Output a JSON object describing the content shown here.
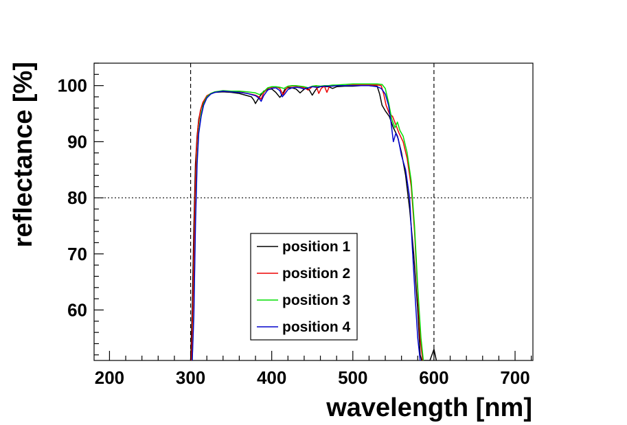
{
  "chart_data": {
    "type": "line",
    "title": "",
    "xlabel": "wavelength [nm]",
    "ylabel": "reflectance [%]",
    "xlim": [
      181,
      722
    ],
    "ylim": [
      51,
      104
    ],
    "x_ticks": [
      200,
      300,
      400,
      500,
      600,
      700
    ],
    "y_ticks": [
      60,
      70,
      80,
      90,
      100
    ],
    "x_tick_labels": [
      "200",
      "300",
      "400",
      "500",
      "600",
      "700"
    ],
    "y_tick_labels": [
      "60",
      "70",
      "80",
      "90",
      "100"
    ],
    "reference_lines": [
      {
        "orientation": "vertical",
        "value": 300,
        "style": "dashed"
      },
      {
        "orientation": "vertical",
        "value": 600,
        "style": "dashed"
      },
      {
        "orientation": "horizontal",
        "value": 80,
        "style": "dotted"
      }
    ],
    "legend_position": "bottom-center",
    "series": [
      {
        "name": "position 1",
        "color": "#000000",
        "x": [
          300,
          302,
          304,
          306,
          308,
          310,
          313,
          316,
          320,
          325,
          330,
          340,
          350,
          360,
          370,
          375,
          378,
          380,
          382,
          386,
          390,
          395,
          400,
          405,
          410,
          413,
          416,
          420,
          425,
          430,
          435,
          438,
          442,
          446,
          450,
          453,
          456,
          460,
          465,
          470,
          475,
          480,
          490,
          500,
          510,
          520,
          530,
          533,
          536,
          540,
          545,
          550,
          555,
          560,
          565,
          570,
          575,
          580,
          583,
          585,
          587,
          590,
          595,
          600,
          603
        ],
        "values": [
          51,
          60,
          75,
          86,
          91,
          94,
          96,
          97,
          98,
          98.6,
          98.8,
          98.9,
          98.8,
          98.6,
          98.2,
          98,
          97.4,
          96.8,
          97.3,
          98.2,
          99,
          99.3,
          99.4,
          98.8,
          97.9,
          98.4,
          99.3,
          99.6,
          99.6,
          99.4,
          98.7,
          99.1,
          99.6,
          99.3,
          98.3,
          99,
          99.6,
          99.8,
          99.8,
          99.8,
          99.5,
          99.8,
          99.9,
          99.9,
          100,
          100,
          99.9,
          98.5,
          96.5,
          95.5,
          94.5,
          92.5,
          91,
          88,
          84,
          78,
          70,
          60,
          52,
          51,
          51,
          51,
          51,
          53,
          51
        ]
      },
      {
        "name": "position 2",
        "color": "#ee0000",
        "x": [
          301,
          303,
          305,
          307,
          309,
          312,
          315,
          320,
          325,
          330,
          340,
          350,
          360,
          370,
          380,
          384,
          387,
          390,
          395,
          400,
          405,
          410,
          414,
          417,
          420,
          425,
          430,
          435,
          440,
          445,
          450,
          455,
          458,
          461,
          465,
          468,
          471,
          475,
          480,
          490,
          500,
          510,
          520,
          530,
          535,
          538,
          541,
          545,
          549,
          553,
          557,
          562,
          567,
          572,
          576,
          580,
          583,
          586
        ],
        "values": [
          51,
          62,
          78,
          88,
          92.5,
          95.5,
          97,
          98.2,
          98.6,
          98.9,
          99,
          98.9,
          98.9,
          98.6,
          98.3,
          98,
          97.6,
          98.7,
          99.5,
          99.7,
          99.8,
          99.5,
          98.4,
          99.2,
          99.8,
          99.9,
          99.9,
          99.8,
          99.6,
          99.2,
          99.8,
          99.9,
          98.6,
          99.5,
          99.9,
          98.8,
          99.8,
          100,
          100,
          100,
          100.1,
          100.1,
          100.1,
          100.1,
          100,
          98.5,
          96.5,
          95,
          94.5,
          93,
          91.5,
          90,
          87,
          82,
          74,
          63,
          55,
          51
        ]
      },
      {
        "name": "position 3",
        "color": "#00dd00",
        "x": [
          302,
          304,
          306,
          308,
          310,
          313,
          316,
          320,
          325,
          330,
          340,
          350,
          360,
          370,
          380,
          385,
          390,
          395,
          400,
          405,
          410,
          415,
          420,
          425,
          430,
          435,
          440,
          445,
          450,
          455,
          460,
          465,
          470,
          475,
          480,
          490,
          500,
          510,
          520,
          530,
          536,
          540,
          544,
          548,
          552,
          555,
          558,
          562,
          567,
          572,
          576,
          580,
          584,
          587
        ],
        "values": [
          51,
          60,
          76,
          87,
          92,
          95,
          96.8,
          98,
          98.6,
          98.9,
          99.1,
          99,
          99,
          98.9,
          98.7,
          98.4,
          98.9,
          99.6,
          99.8,
          99.8,
          99.7,
          99.5,
          99.9,
          100,
          100,
          99.9,
          99.8,
          99.6,
          99.9,
          100,
          99.9,
          100,
          100,
          100.1,
          100.1,
          100.2,
          100.3,
          100.3,
          100.3,
          100.3,
          100.2,
          99.5,
          97,
          94,
          92.5,
          93.5,
          92,
          91,
          88,
          83,
          75,
          64,
          55,
          51
        ]
      },
      {
        "name": "position 4",
        "color": "#0000cc",
        "x": [
          302,
          304,
          306,
          308,
          310,
          313,
          316,
          320,
          325,
          330,
          340,
          350,
          360,
          370,
          380,
          384,
          387,
          390,
          395,
          400,
          405,
          410,
          413,
          416,
          420,
          425,
          430,
          435,
          440,
          445,
          450,
          455,
          460,
          465,
          470,
          475,
          480,
          490,
          500,
          510,
          520,
          530,
          535,
          540,
          544,
          547,
          550,
          553,
          556,
          560,
          565,
          570,
          573,
          577,
          580,
          583
        ],
        "values": [
          51,
          59,
          75,
          86,
          91.5,
          94.5,
          96.5,
          97.8,
          98.5,
          98.8,
          99,
          98.9,
          98.8,
          98.6,
          98.2,
          97.8,
          97.2,
          98.2,
          99.2,
          99.5,
          99.6,
          99.1,
          98,
          98.5,
          99.3,
          99.6,
          99.7,
          99.6,
          99.4,
          99.6,
          99.8,
          99.7,
          99.8,
          99.9,
          99.9,
          99.9,
          100,
          100,
          100,
          100,
          100,
          99.8,
          99.5,
          98.5,
          96.5,
          93.5,
          90,
          91.5,
          90.5,
          87.5,
          85,
          80,
          72,
          62,
          55,
          51
        ]
      }
    ]
  }
}
